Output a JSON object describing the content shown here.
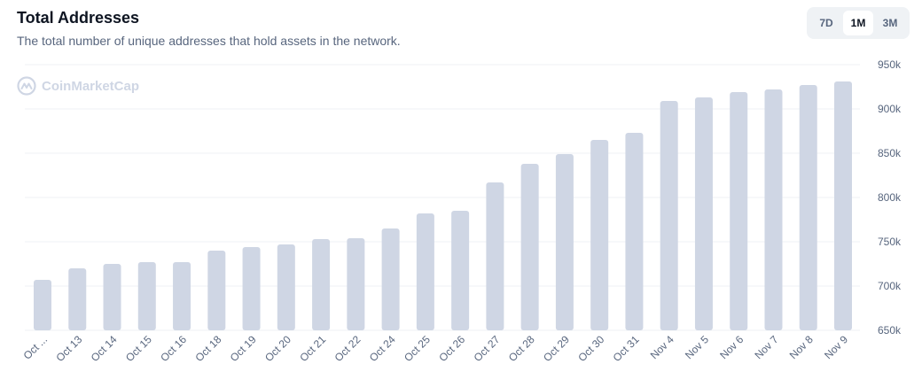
{
  "header": {
    "title": "Total Addresses",
    "subtitle": "The total number of unique addresses that hold assets in the network."
  },
  "range": {
    "options": [
      "7D",
      "1M",
      "3M"
    ],
    "selected": "1M"
  },
  "watermark": {
    "text": "CoinMarketCap",
    "icon": "coinmarketcap-logo-icon"
  },
  "colors": {
    "bar": "#cfd6e4",
    "grid": "#eff2f5",
    "tick_text": "#58667e"
  },
  "chart_data": {
    "type": "bar",
    "categories": [
      "Oct ...",
      "Oct 13",
      "Oct 14",
      "Oct 15",
      "Oct 16",
      "Oct 18",
      "Oct 19",
      "Oct 20",
      "Oct 21",
      "Oct 22",
      "Oct 24",
      "Oct 25",
      "Oct 26",
      "Oct 27",
      "Oct 28",
      "Oct 29",
      "Oct 30",
      "Oct 31",
      "Nov 4",
      "Nov 5",
      "Nov 6",
      "Nov 7",
      "Nov 8",
      "Nov 9"
    ],
    "values": [
      707000,
      720000,
      725000,
      727000,
      727000,
      740000,
      744000,
      747000,
      753000,
      754000,
      765000,
      782000,
      785000,
      817000,
      838000,
      849000,
      865000,
      873000,
      909000,
      913000,
      919000,
      922000,
      927000,
      931000
    ],
    "ylim": [
      650000,
      950000
    ],
    "yticks": [
      650000,
      700000,
      750000,
      800000,
      850000,
      900000,
      950000
    ],
    "ytick_labels": [
      "650k",
      "700k",
      "750k",
      "800k",
      "850k",
      "900k",
      "950k"
    ],
    "grid": true,
    "title": "",
    "xlabel": "",
    "ylabel": ""
  }
}
